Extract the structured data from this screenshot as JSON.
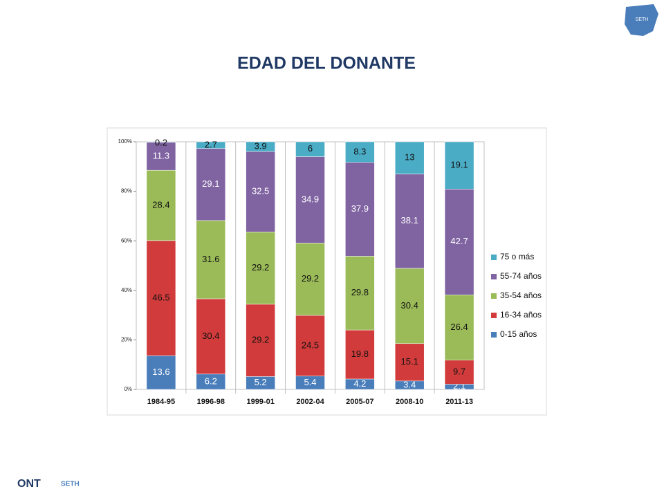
{
  "header": {
    "title": "EDAD DEL DONANTE"
  },
  "logos": {
    "ont": "ONT",
    "seth": "SETH",
    "map": "SETH"
  },
  "chart_data": {
    "type": "stacked_bar",
    "categories": [
      "1984-95",
      "1996-98",
      "1999-01",
      "2002-04",
      "2005-07",
      "2008-10",
      "2011-13"
    ],
    "series": [
      {
        "name": "0-15 años",
        "color": "#4a7ebb",
        "values": [
          13.6,
          6.2,
          5.2,
          5.4,
          4.2,
          3.4,
          2.1
        ]
      },
      {
        "name": "16-34 años",
        "color": "#d13b3b",
        "values": [
          46.5,
          30.4,
          29.2,
          24.5,
          19.8,
          15.1,
          9.7
        ]
      },
      {
        "name": "35-54 años",
        "color": "#9bbb59",
        "values": [
          28.4,
          31.6,
          29.2,
          29.2,
          29.8,
          30.4,
          26.4
        ]
      },
      {
        "name": "55-74 años",
        "color": "#8064a2",
        "values": [
          11.3,
          29.1,
          32.5,
          34.9,
          37.9,
          38.1,
          42.7
        ]
      },
      {
        "name": "75 o más",
        "color": "#4bacc6",
        "values": [
          0.2,
          2.7,
          3.9,
          6,
          8.3,
          13,
          19.1
        ]
      }
    ],
    "ylim": [
      0,
      100
    ],
    "yticks": [
      {
        "value": 0,
        "label": "0%"
      },
      {
        "value": 20,
        "label": "20%"
      },
      {
        "value": 40,
        "label": "40%"
      },
      {
        "value": 60,
        "label": "60%"
      },
      {
        "value": 80,
        "label": "80%"
      },
      {
        "value": 100,
        "label": "100%"
      }
    ],
    "grid": false,
    "legend": "right"
  }
}
